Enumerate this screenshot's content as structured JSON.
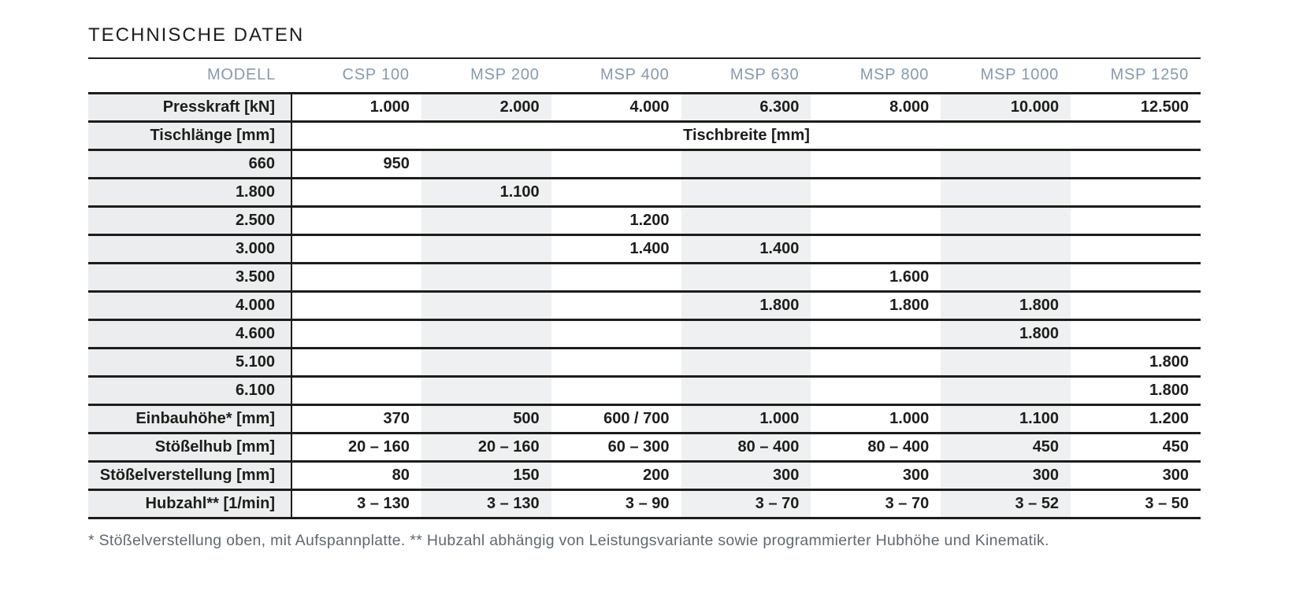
{
  "title": "TECHNISCHE DATEN",
  "colors": {
    "header_text": "#869aae",
    "body_text": "#1d1d1b",
    "line": "#1d1d1b",
    "label_bg": "#ebedee",
    "stripe_bg": "#eef0f1",
    "footnote_text": "#5d6974"
  },
  "table": {
    "header": [
      "MODELL",
      "CSP 100",
      "MSP 200",
      "MSP 400",
      "MSP 630",
      "MSP 800",
      "MSP 1000",
      "MSP 1250"
    ],
    "striped_value_columns": [
      1,
      3,
      5
    ],
    "rows": [
      {
        "type": "data",
        "label": "Presskraft [kN]",
        "values": [
          "1.000",
          "2.000",
          "4.000",
          "6.300",
          "8.000",
          "10.000",
          "12.500"
        ]
      },
      {
        "type": "span",
        "label": "Tischlänge [mm]",
        "span_text": "Tischbreite [mm]"
      },
      {
        "type": "data",
        "label": "660",
        "values": [
          "950",
          "",
          "",
          "",
          "",
          "",
          ""
        ]
      },
      {
        "type": "data",
        "label": "1.800",
        "values": [
          "",
          "1.100",
          "",
          "",
          "",
          "",
          ""
        ]
      },
      {
        "type": "data",
        "label": "2.500",
        "values": [
          "",
          "",
          "1.200",
          "",
          "",
          "",
          ""
        ]
      },
      {
        "type": "data",
        "label": "3.000",
        "values": [
          "",
          "",
          "1.400",
          "1.400",
          "",
          "",
          ""
        ]
      },
      {
        "type": "data",
        "label": "3.500",
        "values": [
          "",
          "",
          "",
          "",
          "1.600",
          "",
          ""
        ]
      },
      {
        "type": "data",
        "label": "4.000",
        "values": [
          "",
          "",
          "",
          "1.800",
          "1.800",
          "1.800",
          ""
        ]
      },
      {
        "type": "data",
        "label": "4.600",
        "values": [
          "",
          "",
          "",
          "",
          "",
          "1.800",
          ""
        ]
      },
      {
        "type": "data",
        "label": "5.100",
        "values": [
          "",
          "",
          "",
          "",
          "",
          "",
          "1.800"
        ]
      },
      {
        "type": "data",
        "label": "6.100",
        "values": [
          "",
          "",
          "",
          "",
          "",
          "",
          "1.800"
        ]
      },
      {
        "type": "data",
        "label": "Einbauhöhe* [mm]",
        "values": [
          "370",
          "500",
          "600 / 700",
          "1.000",
          "1.000",
          "1.100",
          "1.200"
        ]
      },
      {
        "type": "data",
        "label": "Stößelhub [mm]",
        "values": [
          "20 – 160",
          "20 – 160",
          "60 – 300",
          "80 – 400",
          "80 – 400",
          "450",
          "450"
        ]
      },
      {
        "type": "data",
        "label": "Stößelverstellung [mm]",
        "values": [
          "80",
          "150",
          "200",
          "300",
          "300",
          "300",
          "300"
        ]
      },
      {
        "type": "data",
        "label": "Hubzahl** [1/min]",
        "values": [
          "3 – 130",
          "3 – 130",
          "3 – 90",
          "3 – 70",
          "3 – 70",
          "3 – 52",
          "3 – 50"
        ]
      }
    ]
  },
  "footnote": "* Stößelverstellung oben, mit Aufspannplatte. ** Hubzahl abhängig von Leistungsvariante sowie programmierter Hubhöhe und Kinematik."
}
